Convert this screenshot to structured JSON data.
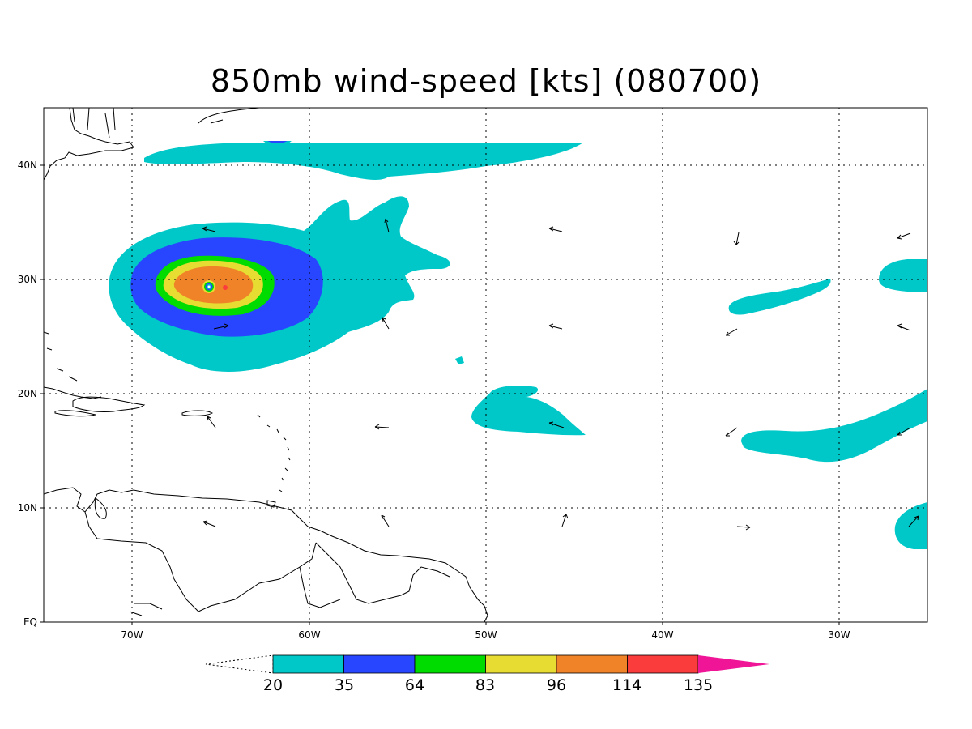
{
  "title": "850mb wind-speed [kts] (080700)",
  "lat_labels": [
    "40N",
    "30N",
    "20N",
    "10N",
    "EQ"
  ],
  "lon_labels": [
    "70W",
    "60W",
    "50W",
    "40W",
    "30W"
  ],
  "colorbar": {
    "thresholds": [
      "20",
      "35",
      "64",
      "83",
      "96",
      "114",
      "135"
    ],
    "colors": [
      "#00c8c8",
      "#2845ff",
      "#00dc00",
      "#e6dc32",
      "#f08228",
      "#fa3c3c",
      "#f01497"
    ]
  }
}
